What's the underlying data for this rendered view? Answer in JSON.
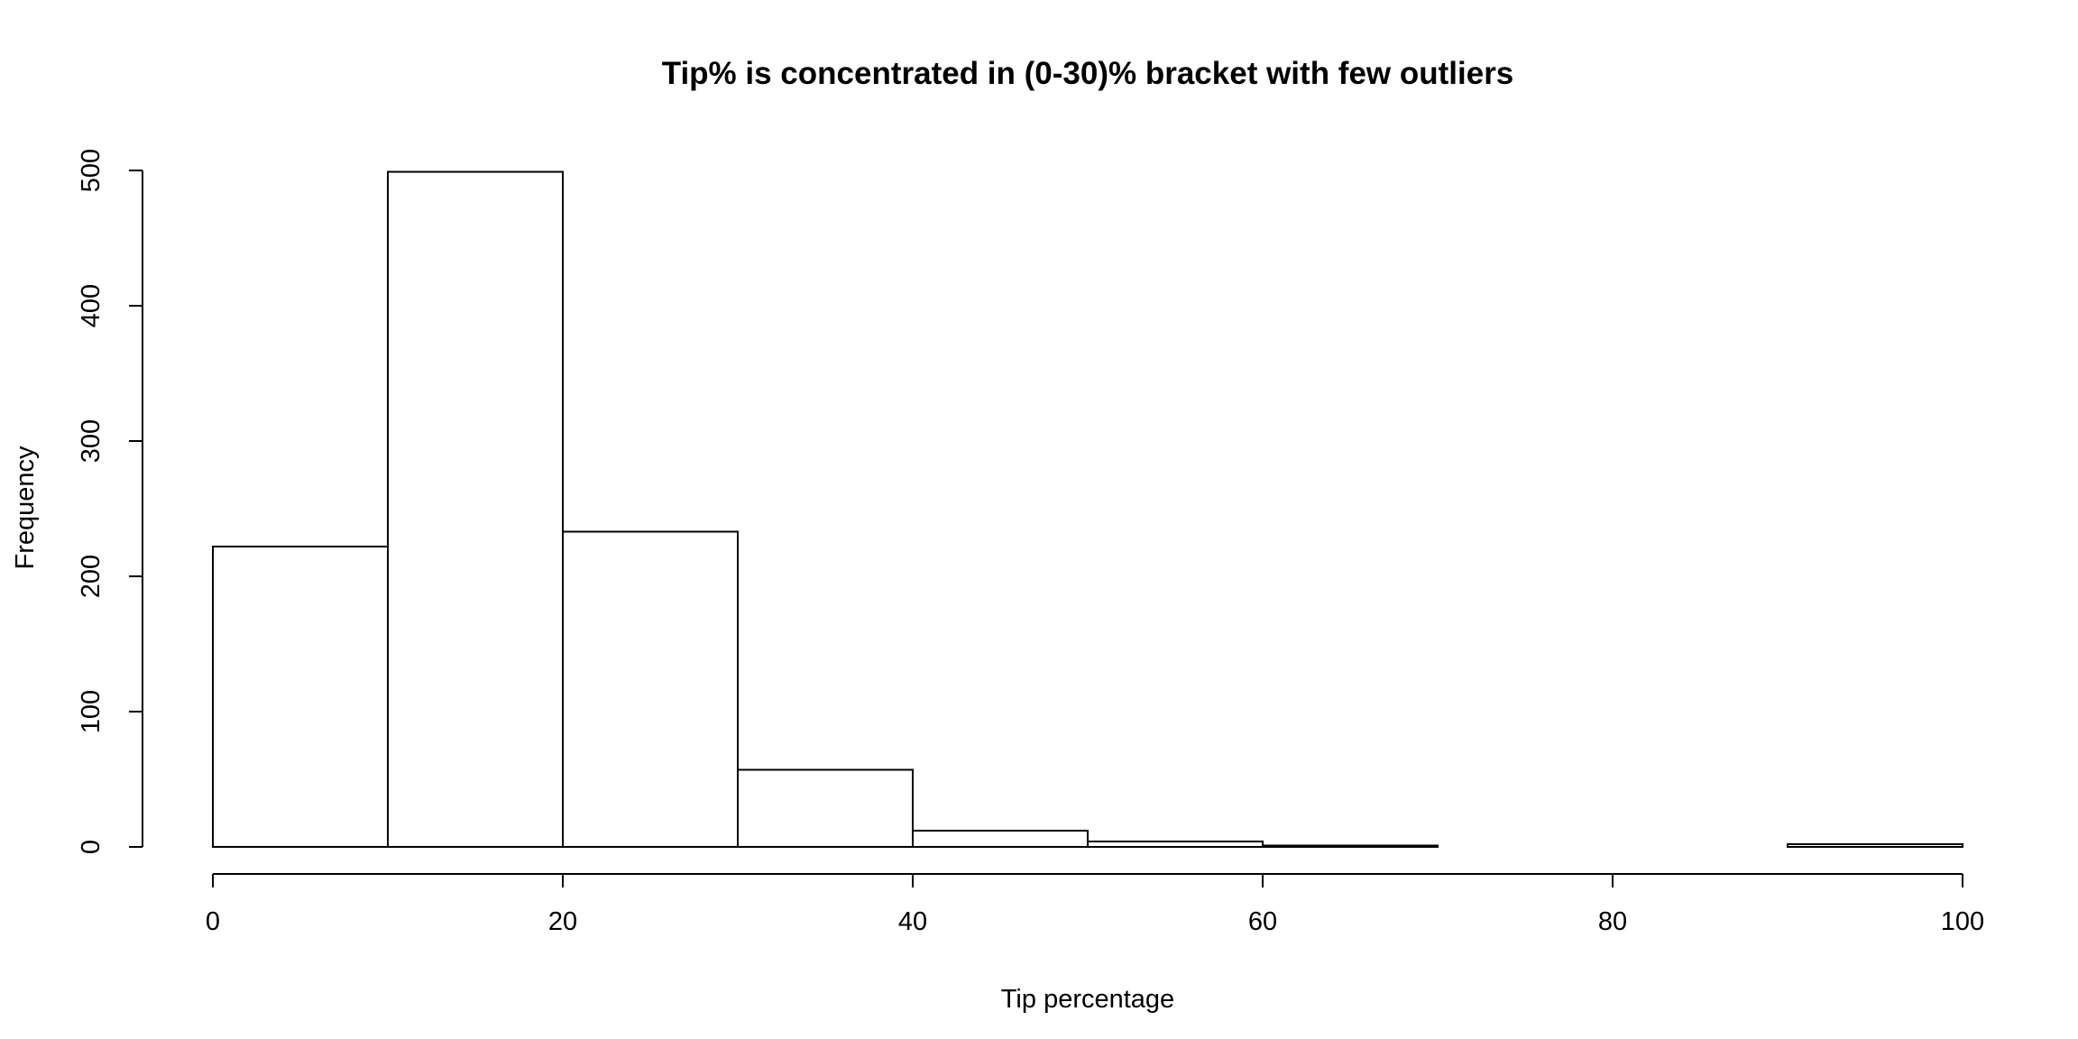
{
  "chart_data": {
    "type": "bar",
    "title": "Tip% is concentrated in (0-30)% bracket with few outliers",
    "xlabel": "Tip percentage",
    "ylabel": "Frequency",
    "bins": [
      {
        "from": 0,
        "to": 10,
        "count": 222
      },
      {
        "from": 10,
        "to": 20,
        "count": 499
      },
      {
        "from": 20,
        "to": 30,
        "count": 233
      },
      {
        "from": 30,
        "to": 40,
        "count": 57
      },
      {
        "from": 40,
        "to": 50,
        "count": 12
      },
      {
        "from": 50,
        "to": 60,
        "count": 4
      },
      {
        "from": 60,
        "to": 70,
        "count": 1
      },
      {
        "from": 70,
        "to": 80,
        "count": 0
      },
      {
        "from": 80,
        "to": 90,
        "count": 0
      },
      {
        "from": 90,
        "to": 100,
        "count": 2
      }
    ],
    "xlim": [
      0,
      100
    ],
    "ylim": [
      0,
      500
    ],
    "x_ticks": [
      0,
      20,
      40,
      60,
      80,
      100
    ],
    "y_ticks": [
      0,
      100,
      200,
      300,
      400,
      500
    ],
    "grid": false,
    "legend": "none",
    "bar_fill": "#ffffff",
    "bar_stroke": "#000000"
  }
}
